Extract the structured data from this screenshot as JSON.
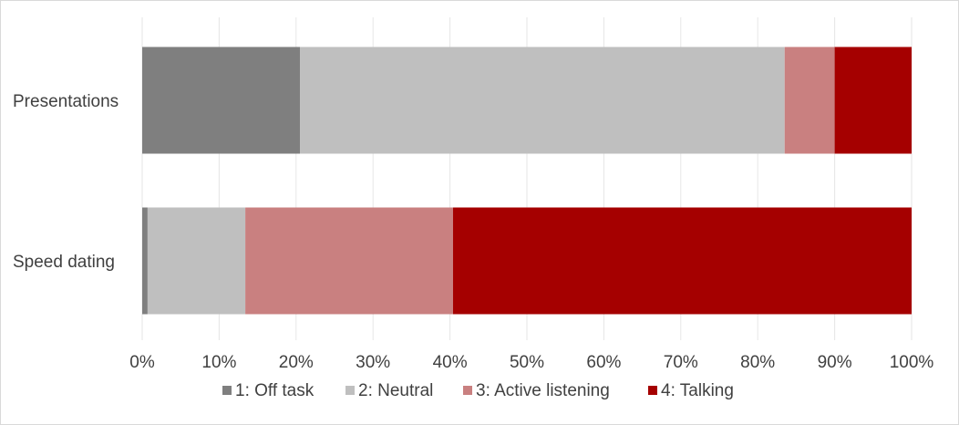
{
  "chart_data": {
    "type": "bar",
    "orientation": "horizontal",
    "stacked": "percent",
    "categories": [
      "Presentations",
      "Speed dating"
    ],
    "series": [
      {
        "name": "1: Off task",
        "color": "#7f7f7f",
        "values": [
          20.5,
          0.7
        ]
      },
      {
        "name": "2: Neutral",
        "color": "#bfbfbf",
        "values": [
          63.0,
          12.7
        ]
      },
      {
        "name": "3: Active listening",
        "color": "#c98080",
        "values": [
          6.5,
          27.0
        ]
      },
      {
        "name": "4: Talking",
        "color": "#a50000",
        "values": [
          10.0,
          59.6
        ]
      }
    ],
    "xlim": [
      0,
      100
    ],
    "xticks": [
      "0%",
      "10%",
      "20%",
      "30%",
      "40%",
      "50%",
      "60%",
      "70%",
      "80%",
      "90%",
      "100%"
    ],
    "grid": true,
    "legend": "bottom"
  }
}
